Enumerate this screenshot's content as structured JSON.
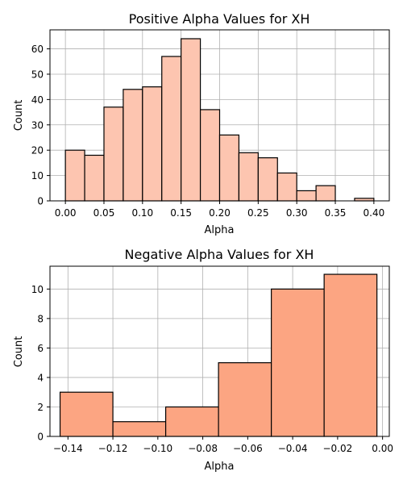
{
  "chart_data": [
    {
      "type": "bar",
      "title": "Positive Alpha Values for XH",
      "xlabel": "Alpha",
      "ylabel": "Count",
      "xlim": [
        -0.02,
        0.42
      ],
      "ylim": [
        0,
        67.5
      ],
      "grid": true,
      "bar_color": "#fdc5b0",
      "edge_color": "#000000",
      "xticks": [
        "0.00",
        "0.05",
        "0.10",
        "0.15",
        "0.20",
        "0.25",
        "0.30",
        "0.35",
        "0.40"
      ],
      "yticks": [
        "0",
        "10",
        "20",
        "30",
        "40",
        "50",
        "60"
      ],
      "bins": [
        {
          "x0": 0.0,
          "x1": 0.025,
          "count": 20
        },
        {
          "x0": 0.025,
          "x1": 0.05,
          "count": 18
        },
        {
          "x0": 0.05,
          "x1": 0.075,
          "count": 37
        },
        {
          "x0": 0.075,
          "x1": 0.1,
          "count": 44
        },
        {
          "x0": 0.1,
          "x1": 0.125,
          "count": 45
        },
        {
          "x0": 0.125,
          "x1": 0.15,
          "count": 57
        },
        {
          "x0": 0.15,
          "x1": 0.175,
          "count": 64
        },
        {
          "x0": 0.175,
          "x1": 0.2,
          "count": 36
        },
        {
          "x0": 0.2,
          "x1": 0.225,
          "count": 26
        },
        {
          "x0": 0.225,
          "x1": 0.25,
          "count": 19
        },
        {
          "x0": 0.25,
          "x1": 0.275,
          "count": 17
        },
        {
          "x0": 0.275,
          "x1": 0.3,
          "count": 11
        },
        {
          "x0": 0.3,
          "x1": 0.325,
          "count": 4
        },
        {
          "x0": 0.325,
          "x1": 0.35,
          "count": 6
        },
        {
          "x0": 0.35,
          "x1": 0.375,
          "count": 0
        },
        {
          "x0": 0.375,
          "x1": 0.4,
          "count": 1
        }
      ]
    },
    {
      "type": "bar",
      "title": "Negative Alpha Values for XH",
      "xlabel": "Alpha",
      "ylabel": "Count",
      "xlim": [
        -0.148,
        0.003
      ],
      "ylim": [
        0,
        11.55
      ],
      "grid": true,
      "bar_color": "#fca582",
      "edge_color": "#000000",
      "xticks": [
        "-0.14",
        "-0.12",
        "-0.10",
        "-0.08",
        "-0.06",
        "-0.04",
        "-0.02",
        "0.00"
      ],
      "yticks": [
        "0",
        "2",
        "4",
        "6",
        "8",
        "10"
      ],
      "bins": [
        {
          "x0": -0.1435,
          "x1": -0.12,
          "count": 3
        },
        {
          "x0": -0.12,
          "x1": -0.0965,
          "count": 1
        },
        {
          "x0": -0.0965,
          "x1": -0.073,
          "count": 2
        },
        {
          "x0": -0.073,
          "x1": -0.0495,
          "count": 5
        },
        {
          "x0": -0.0495,
          "x1": -0.026,
          "count": 10
        },
        {
          "x0": -0.026,
          "x1": -0.0025,
          "count": 11
        }
      ]
    }
  ]
}
